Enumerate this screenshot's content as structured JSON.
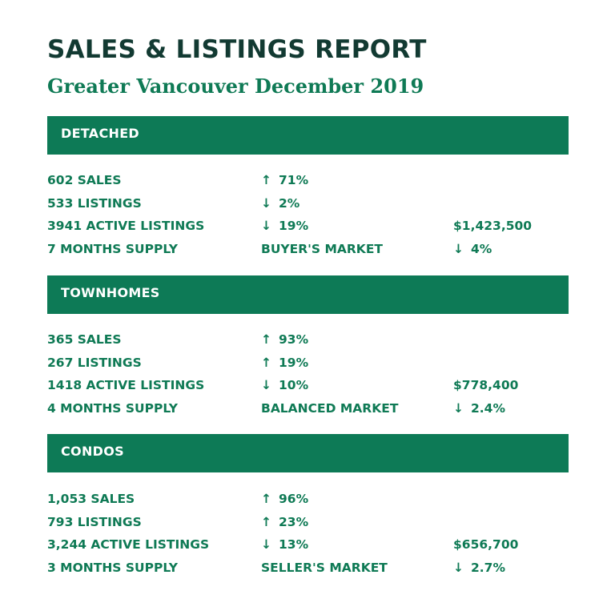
{
  "title": "SALES & LISTINGS REPORT",
  "subtitle": "Greater Vancouver December 2019",
  "sections": [
    {
      "heading": "DETACHED",
      "rows": [
        {
          "label": "602 SALES",
          "arrow": "↑",
          "change": "71%",
          "extra_arrow": "",
          "extra": ""
        },
        {
          "label": "533 LISTINGS",
          "arrow": "↓",
          "change": "2%",
          "extra_arrow": "",
          "extra": ""
        },
        {
          "label": "3941 ACTIVE LISTINGS",
          "arrow": "↓",
          "change": "19%",
          "extra_arrow": "",
          "extra": "$1,423,500"
        },
        {
          "label": "7 MONTHS SUPPLY",
          "arrow": "",
          "change": "BUYER'S MARKET",
          "extra_arrow": "↓",
          "extra": "4%"
        }
      ]
    },
    {
      "heading": "TOWNHOMES",
      "rows": [
        {
          "label": "365 SALES",
          "arrow": "↑",
          "change": "93%",
          "extra_arrow": "",
          "extra": ""
        },
        {
          "label": "267 LISTINGS",
          "arrow": "↑",
          "change": "19%",
          "extra_arrow": "",
          "extra": ""
        },
        {
          "label": "1418 ACTIVE LISTINGS",
          "arrow": "↓",
          "change": "10%",
          "extra_arrow": "",
          "extra": "$778,400"
        },
        {
          "label": "4 MONTHS SUPPLY",
          "arrow": "",
          "change": "BALANCED MARKET",
          "extra_arrow": "↓",
          "extra": "2.4%"
        }
      ]
    },
    {
      "heading": "CONDOS",
      "rows": [
        {
          "label": "1,053 SALES",
          "arrow": "↑",
          "change": "96%",
          "extra_arrow": "",
          "extra": ""
        },
        {
          "label": "793 LISTINGS",
          "arrow": "↑",
          "change": "23%",
          "extra_arrow": "",
          "extra": ""
        },
        {
          "label": "3,244 ACTIVE LISTINGS",
          "arrow": "↓",
          "change": "13%",
          "extra_arrow": "",
          "extra": "$656,700"
        },
        {
          "label": "3 MONTHS SUPPLY",
          "arrow": "",
          "change": "SELLER'S MARKET",
          "extra_arrow": "↓",
          "extra": "2.7%"
        }
      ]
    }
  ]
}
